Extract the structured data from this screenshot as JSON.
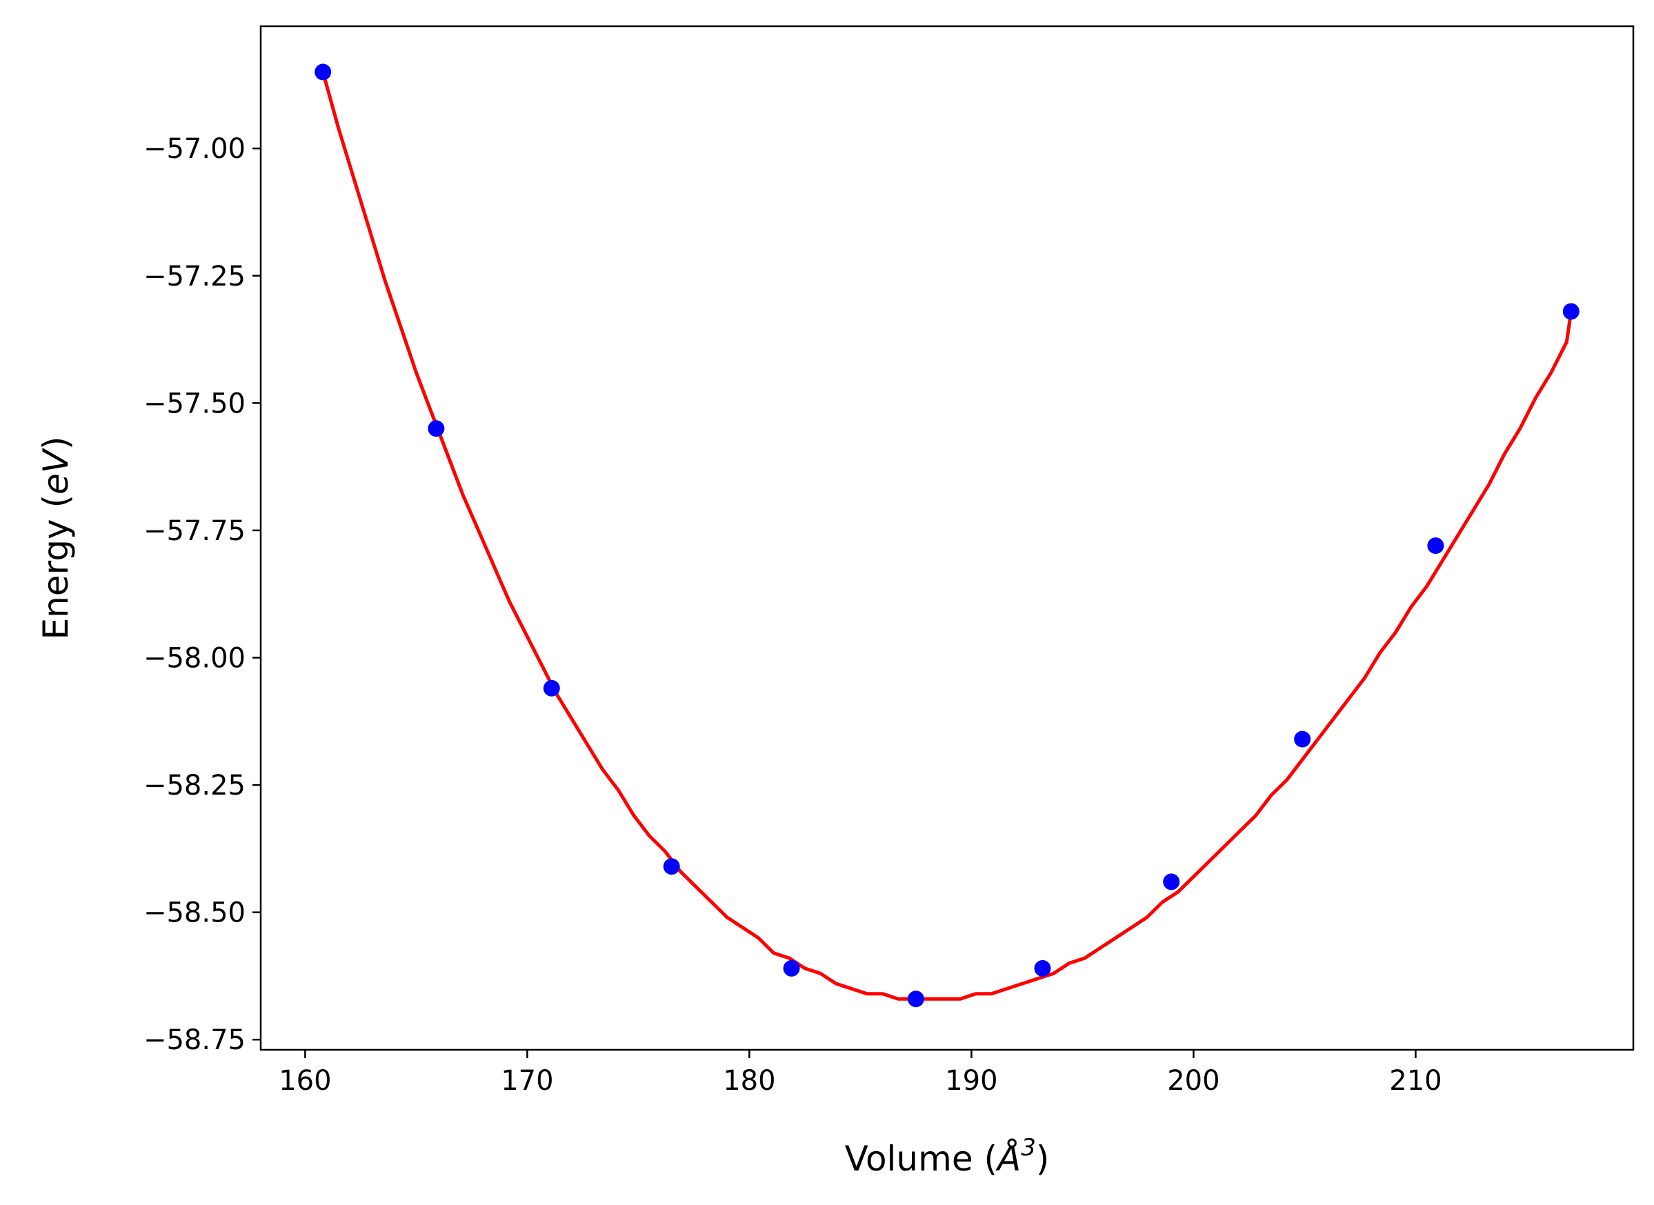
{
  "chart_data": {
    "type": "line",
    "title": "",
    "xlabel": "Volume (Å³)",
    "xlabel_parts": {
      "main": "Volume (",
      "unit": "Å",
      "sup": "3",
      "close": ")"
    },
    "ylabel": "Energy (eV)",
    "ylabel_parts": {
      "main": "Energy (",
      "unit": "eV",
      "close": ")"
    },
    "xlim": [
      158,
      219.8
    ],
    "ylim": [
      -58.77,
      -56.76
    ],
    "xticks": [
      160,
      170,
      180,
      190,
      200,
      210
    ],
    "xtick_labels": [
      "160",
      "170",
      "180",
      "190",
      "200",
      "210"
    ],
    "yticks": [
      -57.0,
      -57.25,
      -57.5,
      -57.75,
      -58.0,
      -58.25,
      -58.5,
      -58.75
    ],
    "ytick_labels": [
      "−57.00",
      "−57.25",
      "−57.50",
      "−57.75",
      "−58.00",
      "−58.25",
      "−58.50",
      "−58.75"
    ],
    "grid": false,
    "series": [
      {
        "kind": "scatter",
        "color": "#0000ff",
        "x": [
          160.8,
          165.9,
          171.1,
          176.5,
          181.9,
          187.5,
          193.2,
          199.0,
          204.9,
          210.9,
          217.0
        ],
        "y": [
          -56.85,
          -57.55,
          -58.06,
          -58.41,
          -58.61,
          -58.67,
          -58.61,
          -58.44,
          -58.16,
          -57.78,
          -57.32
        ]
      },
      {
        "kind": "fit",
        "color": "#ff0000",
        "x": [
          160.8,
          161.5,
          162.2,
          162.9,
          163.6,
          164.3,
          165.0,
          165.7,
          166.4,
          167.1,
          167.8,
          168.5,
          169.2,
          169.9,
          170.6,
          171.3,
          172.0,
          172.7,
          173.4,
          174.1,
          174.8,
          175.5,
          176.2,
          176.9,
          177.6,
          178.3,
          179.0,
          179.7,
          180.4,
          181.1,
          181.8,
          182.5,
          183.2,
          183.9,
          184.6,
          185.3,
          186.0,
          186.7,
          187.4,
          188.1,
          188.8,
          189.5,
          190.2,
          190.9,
          191.6,
          192.3,
          193.0,
          193.7,
          194.4,
          195.1,
          195.8,
          196.5,
          197.2,
          197.9,
          198.6,
          199.3,
          200.0,
          200.7,
          201.4,
          202.1,
          202.8,
          203.5,
          204.2,
          204.9,
          205.6,
          206.3,
          207.0,
          207.7,
          208.4,
          209.1,
          209.8,
          210.5,
          211.2,
          211.9,
          212.6,
          213.3,
          214.0,
          214.7,
          215.4,
          216.1,
          216.8,
          217.0
        ],
        "y": [
          -56.85,
          -56.96,
          -57.06,
          -57.16,
          -57.26,
          -57.35,
          -57.44,
          -57.52,
          -57.6,
          -57.68,
          -57.75,
          -57.82,
          -57.89,
          -57.95,
          -58.01,
          -58.07,
          -58.12,
          -58.17,
          -58.22,
          -58.26,
          -58.31,
          -58.35,
          -58.38,
          -58.42,
          -58.45,
          -58.48,
          -58.51,
          -58.53,
          -58.55,
          -58.58,
          -58.59,
          -58.61,
          -58.62,
          -58.64,
          -58.65,
          -58.66,
          -58.66,
          -58.67,
          -58.67,
          -58.67,
          -58.67,
          -58.67,
          -58.66,
          -58.66,
          -58.65,
          -58.64,
          -58.63,
          -58.62,
          -58.6,
          -58.59,
          -58.57,
          -58.55,
          -58.53,
          -58.51,
          -58.48,
          -58.46,
          -58.43,
          -58.4,
          -58.37,
          -58.34,
          -58.31,
          -58.27,
          -58.24,
          -58.2,
          -58.16,
          -58.12,
          -58.08,
          -58.04,
          -57.99,
          -57.95,
          -57.9,
          -57.86,
          -57.81,
          -57.76,
          -57.71,
          -57.66,
          -57.6,
          -57.55,
          -57.49,
          -57.44,
          -57.38,
          -57.32
        ]
      }
    ]
  }
}
